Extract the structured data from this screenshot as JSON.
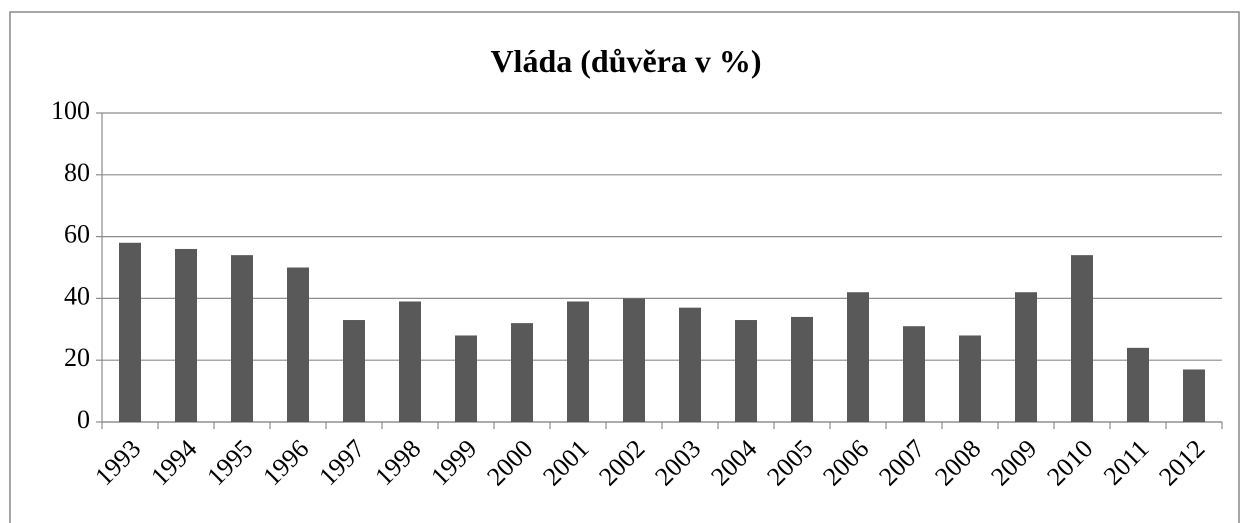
{
  "chart_data": {
    "type": "bar",
    "title": "Vláda (důvěra v %)",
    "categories": [
      "1993",
      "1994",
      "1995",
      "1996",
      "1997",
      "1998",
      "1999",
      "2000",
      "2001",
      "2002",
      "2003",
      "2004",
      "2005",
      "2006",
      "2007",
      "2008",
      "2009",
      "2010",
      "2011",
      "2012"
    ],
    "values": [
      58,
      56,
      54,
      50,
      33,
      39,
      28,
      32,
      39,
      40,
      37,
      33,
      34,
      42,
      31,
      28,
      42,
      54,
      24,
      17
    ],
    "color": "#595959",
    "ylim": [
      0,
      100
    ],
    "yticks": [
      0,
      20,
      40,
      60,
      80,
      100
    ],
    "grid": true
  }
}
